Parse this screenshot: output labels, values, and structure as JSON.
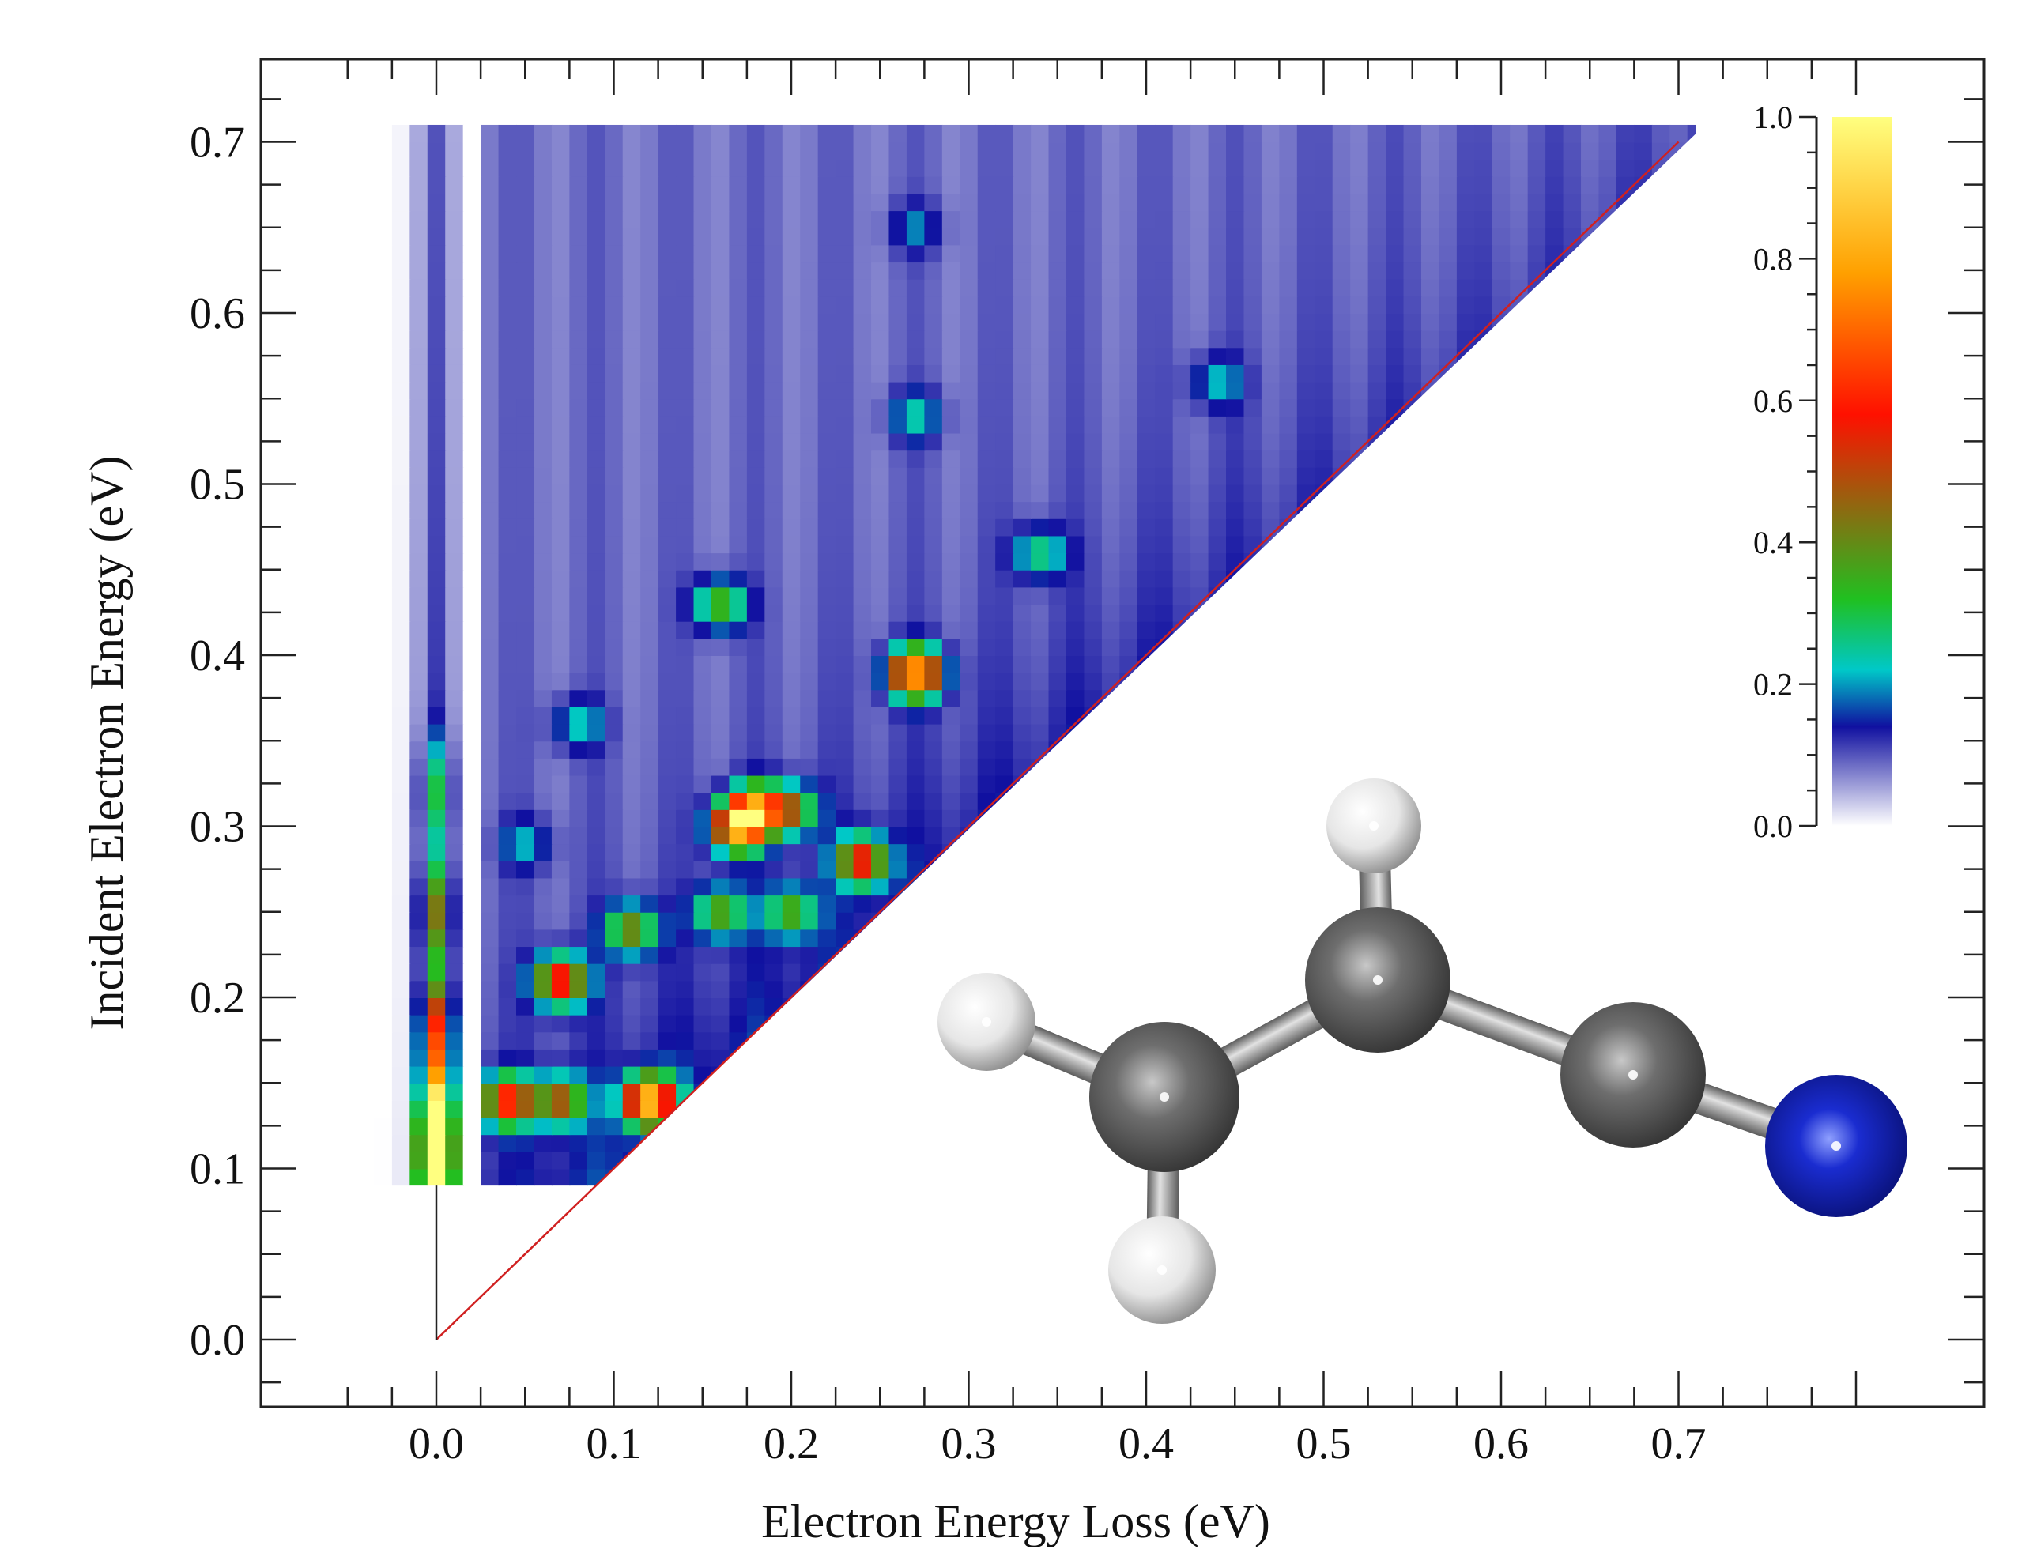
{
  "chart_data": {
    "type": "heatmap",
    "title": "",
    "xlabel": "Electron Energy Loss (eV)",
    "ylabel": "Incident Electron Energy (eV)",
    "xlim": [
      -0.1,
      0.87
    ],
    "ylim": [
      -0.04,
      0.75
    ],
    "x_ticks": [
      "0.0",
      "0.1",
      "0.2",
      "0.3",
      "0.4",
      "0.5",
      "0.6",
      "0.7"
    ],
    "x_tick_values": [
      0.0,
      0.1,
      0.2,
      0.3,
      0.4,
      0.5,
      0.6,
      0.7
    ],
    "y_ticks": [
      "0.0",
      "0.1",
      "0.2",
      "0.3",
      "0.4",
      "0.5",
      "0.6",
      "0.7"
    ],
    "y_tick_values": [
      0.0,
      0.1,
      0.2,
      0.3,
      0.4,
      0.5,
      0.6,
      0.7
    ],
    "data_extent": {
      "incident_min": 0.09,
      "incident_max": 0.71,
      "loss_min": -0.035,
      "loss_max": 0.71
    },
    "diagonal_line": {
      "from": [
        0.0,
        0.0
      ],
      "to": [
        0.7,
        0.7
      ],
      "color": "#d02020"
    },
    "elastic_line": {
      "x": 0.0,
      "from_y": 0.0,
      "to_y": 0.09,
      "color": "#222222"
    },
    "colorbar": {
      "min": 0.0,
      "max": 1.0,
      "tick_labels": [
        "0.0",
        "0.2",
        "0.4",
        "0.6",
        "0.8",
        "1.0"
      ],
      "tick_values": [
        0.0,
        0.2,
        0.4,
        0.6,
        0.8,
        1.0
      ],
      "colors": [
        "#ffffff",
        "#1010a0",
        "#00c8c8",
        "#20c020",
        "#ff1000",
        "#ffa000",
        "#ffff80"
      ],
      "color_stops": [
        0.0,
        0.14,
        0.22,
        0.32,
        0.58,
        0.78,
        1.0
      ]
    },
    "peaks": [
      {
        "x": 0.0,
        "y": 0.1,
        "intensity": 1.0
      },
      {
        "x": 0.0,
        "y": 0.13,
        "intensity": 0.75
      },
      {
        "x": 0.0,
        "y": 0.18,
        "intensity": 0.45
      },
      {
        "x": 0.0,
        "y": 0.25,
        "intensity": 0.3
      },
      {
        "x": 0.0,
        "y": 0.32,
        "intensity": 0.18
      },
      {
        "x": 0.04,
        "y": 0.14,
        "intensity": 0.55
      },
      {
        "x": 0.07,
        "y": 0.14,
        "intensity": 0.4
      },
      {
        "x": 0.07,
        "y": 0.21,
        "intensity": 0.55
      },
      {
        "x": 0.12,
        "y": 0.14,
        "intensity": 0.78
      },
      {
        "x": 0.11,
        "y": 0.24,
        "intensity": 0.35
      },
      {
        "x": 0.16,
        "y": 0.25,
        "intensity": 0.3
      },
      {
        "x": 0.2,
        "y": 0.25,
        "intensity": 0.28
      },
      {
        "x": 0.17,
        "y": 0.3,
        "intensity": 0.68
      },
      {
        "x": 0.18,
        "y": 0.31,
        "intensity": 0.6
      },
      {
        "x": 0.2,
        "y": 0.31,
        "intensity": 0.35
      },
      {
        "x": 0.24,
        "y": 0.28,
        "intensity": 0.5
      },
      {
        "x": 0.27,
        "y": 0.39,
        "intensity": 0.72
      },
      {
        "x": 0.16,
        "y": 0.43,
        "intensity": 0.3
      },
      {
        "x": 0.34,
        "y": 0.46,
        "intensity": 0.2
      },
      {
        "x": 0.27,
        "y": 0.54,
        "intensity": 0.15
      },
      {
        "x": 0.27,
        "y": 0.65,
        "intensity": 0.1
      },
      {
        "x": 0.44,
        "y": 0.56,
        "intensity": 0.13
      },
      {
        "x": 0.08,
        "y": 0.36,
        "intensity": 0.15
      },
      {
        "x": 0.05,
        "y": 0.29,
        "intensity": 0.12
      }
    ],
    "legend": "none",
    "grid": false
  },
  "inset": {
    "description_icon": "molecule-ball-and-stick-icon",
    "atoms": [
      {
        "element": "H",
        "color": "#f4f4f4"
      },
      {
        "element": "H",
        "color": "#f4f4f4"
      },
      {
        "element": "H",
        "color": "#f4f4f4"
      },
      {
        "element": "C",
        "color": "#6a6a6a"
      },
      {
        "element": "C",
        "color": "#6a6a6a"
      },
      {
        "element": "C",
        "color": "#6a6a6a"
      },
      {
        "element": "N",
        "color": "#1020c0"
      }
    ]
  }
}
